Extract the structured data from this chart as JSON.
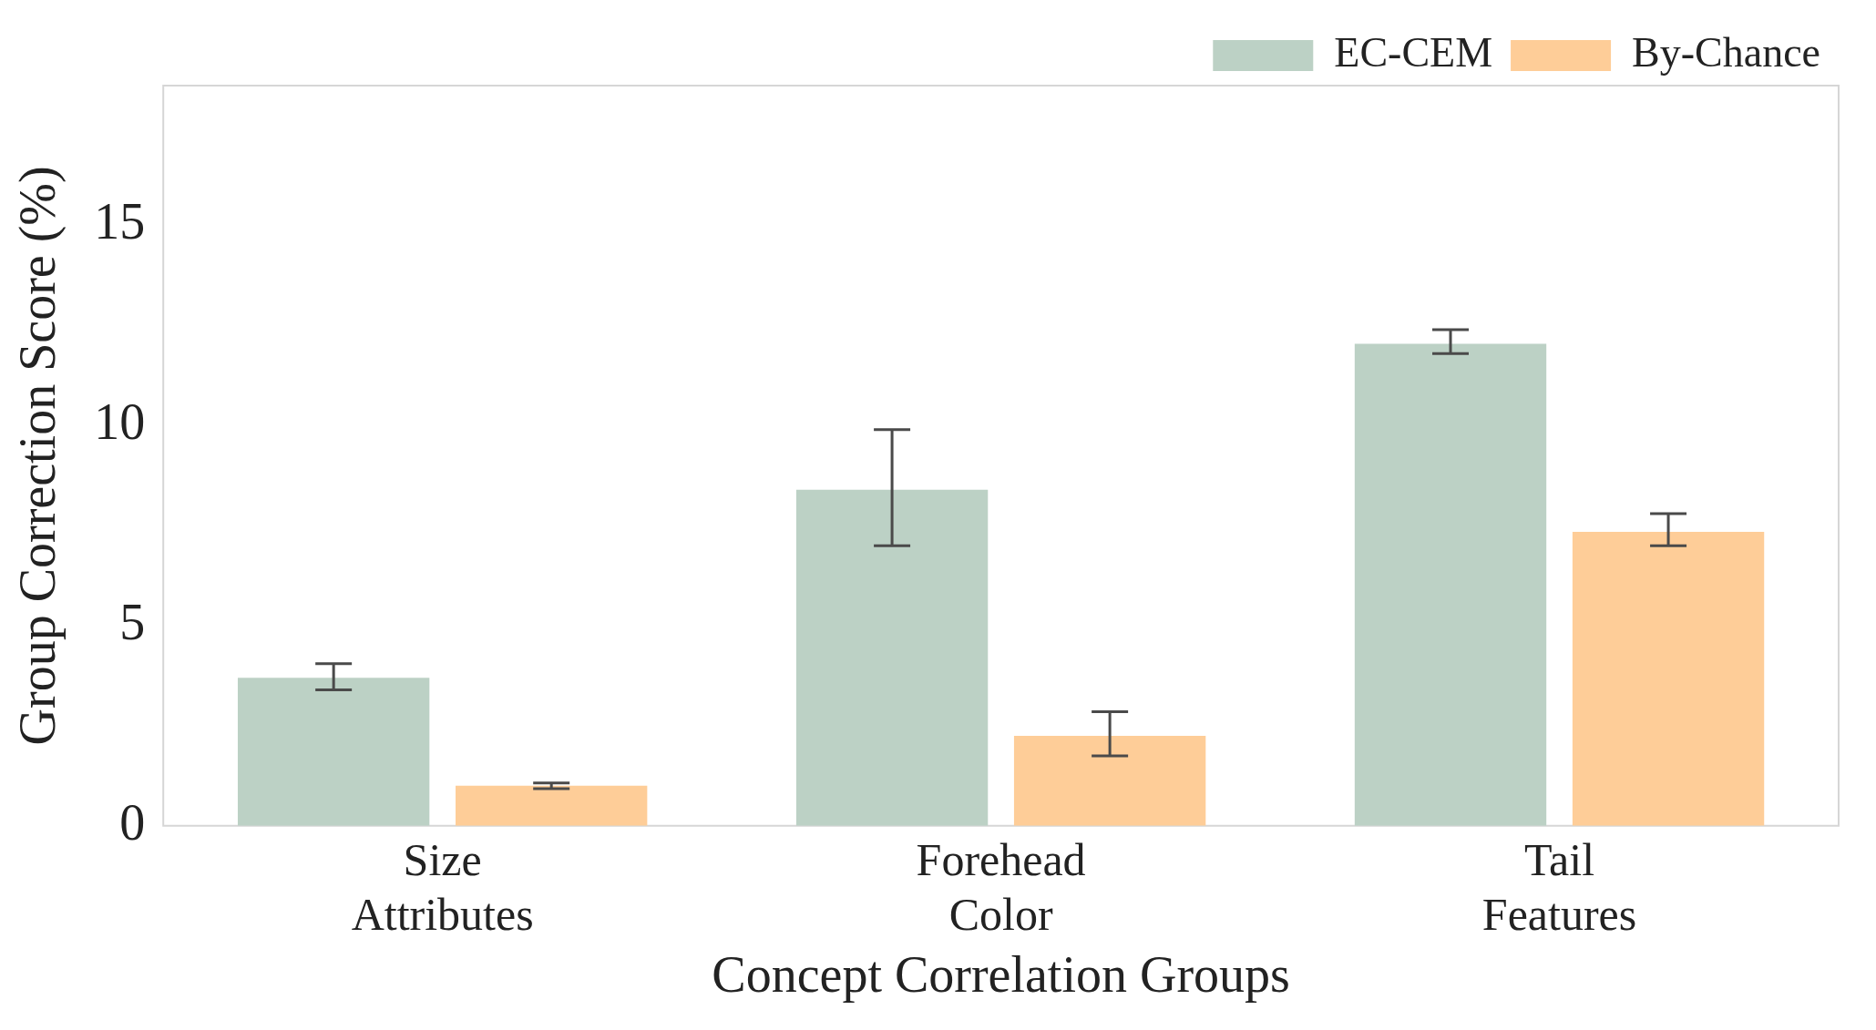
{
  "chart_data": {
    "type": "bar",
    "xlabel": "Concept Correlation Groups",
    "ylabel": "Group Correction Score (%)",
    "categories": [
      "Size\nAttributes",
      "Forehead\nColor",
      "Tail\nFeatures"
    ],
    "series": [
      {
        "name": "EC-CEM",
        "color": "#bcd1c5",
        "values": [
          3.7,
          8.4,
          12.05
        ],
        "errors": [
          [
            3.4,
            4.05
          ],
          [
            7.0,
            9.9
          ],
          [
            11.8,
            12.4
          ]
        ]
      },
      {
        "name": "By-Chance",
        "color": "#fecd98",
        "values": [
          1.0,
          2.25,
          7.35
        ],
        "errors": [
          [
            0.93,
            1.07
          ],
          [
            1.75,
            2.85
          ],
          [
            7.0,
            7.8
          ]
        ]
      }
    ],
    "ylim": [
      0,
      18.5
    ],
    "yticks": [
      0,
      5,
      10,
      15
    ],
    "grid": false,
    "legend": "top right"
  }
}
